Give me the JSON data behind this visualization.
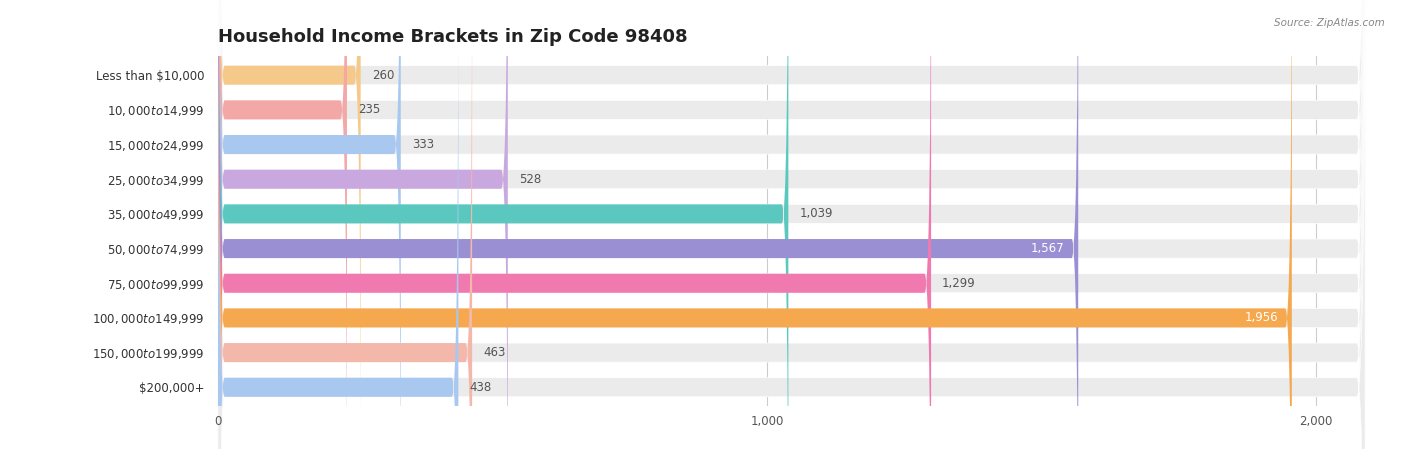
{
  "title": "Household Income Brackets in Zip Code 98408",
  "source": "Source: ZipAtlas.com",
  "categories": [
    "Less than $10,000",
    "$10,000 to $14,999",
    "$15,000 to $24,999",
    "$25,000 to $34,999",
    "$35,000 to $49,999",
    "$50,000 to $74,999",
    "$75,000 to $99,999",
    "$100,000 to $149,999",
    "$150,000 to $199,999",
    "$200,000+"
  ],
  "values": [
    260,
    235,
    333,
    528,
    1039,
    1567,
    1299,
    1956,
    463,
    438
  ],
  "bar_colors": [
    "#f5c98a",
    "#f4a7a7",
    "#a8c8f0",
    "#c9a8e0",
    "#5bc8c0",
    "#9b8fd4",
    "#f07ab0",
    "#f5a84e",
    "#f4b8aa",
    "#a8c8f0"
  ],
  "xlim": [
    0,
    2100
  ],
  "xticks": [
    0,
    1000,
    2000
  ],
  "xtick_labels": [
    "0",
    "1,000",
    "2,000"
  ],
  "background_color": "#ffffff",
  "bar_bg_color": "#ebebeb",
  "title_fontsize": 13,
  "label_fontsize": 8.5,
  "value_fontsize": 8.5
}
